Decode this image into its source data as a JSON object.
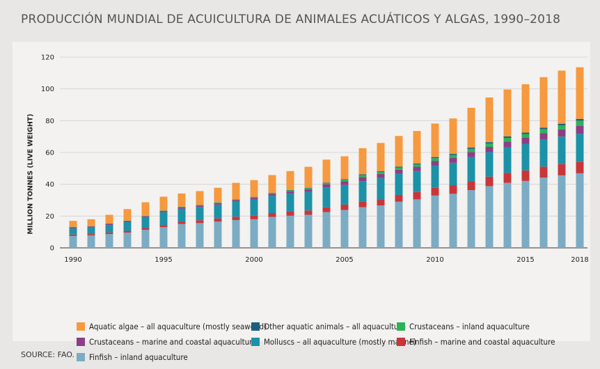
{
  "title": "PRODUCCIÓN MUNDIAL DE ACUICULTURA DE ANIMALES ACUÁTICOS Y ALGAS, 1990–2018",
  "source": "SOURCE: FAO.",
  "chart_data": {
    "type": "bar",
    "stacked": true,
    "ylabel": "MILLION TONNES (LIVE WEIGHT)",
    "xlabel": "",
    "ylim": [
      0,
      120
    ],
    "yticks": [
      0,
      20,
      40,
      60,
      80,
      100,
      120
    ],
    "xtick_labels": [
      "1990",
      "1995",
      "2000",
      "2005",
      "2010",
      "2015",
      "2018"
    ],
    "grid": true,
    "legend_position": "bottom",
    "categories": [
      1990,
      1991,
      1992,
      1993,
      1994,
      1995,
      1996,
      1997,
      1998,
      1999,
      2000,
      2001,
      2002,
      2003,
      2004,
      2005,
      2006,
      2007,
      2008,
      2009,
      2010,
      2011,
      2012,
      2013,
      2014,
      2015,
      2016,
      2017,
      2018
    ],
    "series": [
      {
        "name": "Finfish – inland aquaculture",
        "color": "#7bacc4",
        "values": [
          7.5,
          7.8,
          8.7,
          9.6,
          11.3,
          13,
          15,
          15.6,
          16.5,
          17.5,
          18,
          19.5,
          20.2,
          20.8,
          22.5,
          23.8,
          25.6,
          26.7,
          29,
          30.5,
          32.9,
          34,
          36.3,
          38.8,
          40.9,
          42.1,
          44.2,
          45.6,
          46.9
        ]
      },
      {
        "name": "Finfish – marine and coastal aquaculture",
        "color": "#c9363a",
        "values": [
          0.9,
          0.9,
          1,
          1.1,
          1.2,
          1.4,
          1.6,
          1.8,
          2,
          2.1,
          2.2,
          2.4,
          2.6,
          2.7,
          3,
          3.4,
          3.6,
          3.9,
          4.3,
          4.6,
          4.9,
          5.2,
          5.7,
          6,
          6.3,
          6.6,
          6.9,
          7.1,
          7.3
        ]
      },
      {
        "name": "Molluscs – all aquaculture (mostly marine)",
        "color": "#1b92a8",
        "values": [
          3.9,
          4.1,
          4.7,
          5.5,
          6.6,
          8,
          8.1,
          8.3,
          8.7,
          9.4,
          10.2,
          10.8,
          11.4,
          11.7,
          12.5,
          12.3,
          12.8,
          13.3,
          13.2,
          13.2,
          14.1,
          14.3,
          15.1,
          15.4,
          16.1,
          16.6,
          16.9,
          17.3,
          17.6
        ]
      },
      {
        "name": "Crustaceans – marine and coastal aquaculture",
        "color": "#8d3e86",
        "values": [
          0.7,
          0.7,
          0.7,
          0.7,
          0.7,
          0.8,
          0.8,
          0.8,
          0.9,
          1,
          1.1,
          1.3,
          1.4,
          1.7,
          2,
          2.3,
          2.5,
          2.6,
          2.6,
          2.7,
          2.8,
          3,
          3.2,
          3.3,
          3.6,
          3.9,
          4.2,
          4.5,
          5
        ]
      },
      {
        "name": "Crustaceans – inland aquaculture",
        "color": "#2db357",
        "values": [
          0.1,
          0.1,
          0.1,
          0.1,
          0.2,
          0.2,
          0.2,
          0.3,
          0.3,
          0.3,
          0.4,
          0.5,
          0.5,
          0.6,
          0.8,
          1,
          1.2,
          1.3,
          1.4,
          1.5,
          1.7,
          1.9,
          2,
          2.2,
          2.3,
          2.4,
          2.5,
          2.6,
          3.2
        ]
      },
      {
        "name": "Other aquatic animals – all aquaculture",
        "color": "#1a5f7e",
        "values": [
          0.1,
          0.1,
          0.1,
          0.1,
          0.1,
          0.1,
          0.2,
          0.2,
          0.2,
          0.2,
          0.2,
          0.2,
          0.3,
          0.3,
          0.3,
          0.4,
          0.5,
          0.5,
          0.6,
          0.6,
          0.7,
          0.7,
          0.8,
          0.8,
          0.9,
          0.9,
          0.9,
          1,
          1.1
        ]
      },
      {
        "name": "Aquatic algae – all aquaculture (mostly seaweed)",
        "color": "#f6993f",
        "values": [
          3.8,
          4.3,
          5.5,
          7.3,
          8.6,
          8.7,
          8.3,
          8.7,
          9.2,
          10.4,
          10.5,
          11.1,
          11.9,
          13.2,
          14.4,
          14.4,
          16.5,
          17.7,
          19.3,
          20.4,
          21.1,
          22.3,
          25,
          28.1,
          29.5,
          30.4,
          31.8,
          33.4,
          32.5
        ]
      }
    ],
    "legend_order": [
      "Aquatic algae – all aquaculture (mostly seaweed)",
      "Other aquatic animals – all aquaculture",
      "Crustaceans – inland aquaculture",
      "Crustaceans – marine and coastal aquaculture",
      "Molluscs – all aquaculture (mostly marine)",
      "Finfish – marine and coastal aquaculture",
      "Finfish – inland aquaculture"
    ]
  }
}
